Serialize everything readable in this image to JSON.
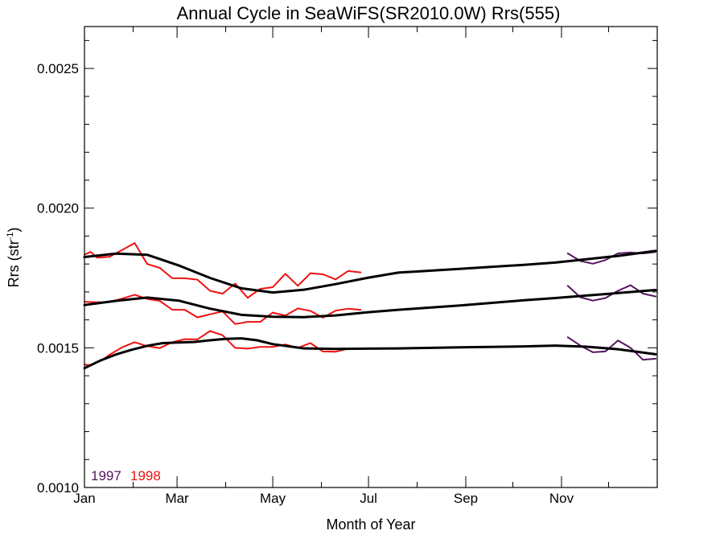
{
  "chart_data": {
    "type": "line",
    "title": "Annual Cycle in SeaWiFS(SR2010.0W) Rrs(555)",
    "xlabel": "Month of Year",
    "ylabel": "Rrs (str",
    "ylabel_superscript": "-1",
    "ylabel_suffix": ")",
    "x_tick_labels": [
      "Jan",
      "Mar",
      "May",
      "Jul",
      "Sep",
      "Nov"
    ],
    "x_range_days": [
      0,
      365
    ],
    "ylim": [
      0.001,
      0.00265
    ],
    "y_tick_labels": [
      "0.0010",
      "0.0015",
      "0.0020",
      "0.0025"
    ],
    "y_major_ticks": [
      0.001,
      0.0015,
      0.002,
      0.0025
    ],
    "grid": false,
    "legend": [
      {
        "label": "1997",
        "color": "#55155f"
      },
      {
        "label": "1998",
        "color": "#ee1111"
      }
    ],
    "series": [
      {
        "name": "1997",
        "color": "#55155f",
        "group": "upper",
        "x": [
          308,
          316,
          324,
          332,
          340,
          348,
          356,
          364
        ],
        "y": [
          0.001838,
          0.001811,
          0.001801,
          0.001814,
          0.001838,
          0.001841,
          0.001838,
          0.001843
        ]
      },
      {
        "name": "1997",
        "color": "#55155f",
        "group": "middle",
        "x": [
          308,
          316,
          324,
          332,
          340,
          348,
          356,
          364
        ],
        "y": [
          0.001722,
          0.001681,
          0.001669,
          0.001678,
          0.001704,
          0.001724,
          0.001694,
          0.001684
        ]
      },
      {
        "name": "1997",
        "color": "#55155f",
        "group": "lower",
        "x": [
          308,
          316,
          324,
          332,
          340,
          348,
          356,
          364
        ],
        "y": [
          0.001538,
          0.001508,
          0.001484,
          0.001487,
          0.001526,
          0.0015,
          0.001457,
          0.001461
        ]
      },
      {
        "name": "1998",
        "color": "#ee1111",
        "group": "upper",
        "x": [
          0,
          4,
          8,
          12,
          16,
          24,
          32,
          40,
          48,
          56,
          64,
          72,
          80,
          88,
          96,
          104,
          112,
          120,
          128,
          136,
          144,
          152,
          160,
          168,
          176
        ],
        "y": [
          0.001834,
          0.001843,
          0.001823,
          0.001824,
          0.001826,
          0.00185,
          0.001875,
          0.0018,
          0.001786,
          0.001749,
          0.001749,
          0.001744,
          0.001704,
          0.001694,
          0.00173,
          0.001679,
          0.001711,
          0.001717,
          0.001765,
          0.001722,
          0.001767,
          0.001763,
          0.001745,
          0.001775,
          0.00177
        ]
      },
      {
        "name": "1998",
        "color": "#ee1111",
        "group": "middle",
        "x": [
          0,
          8,
          16,
          24,
          32,
          40,
          48,
          56,
          64,
          72,
          80,
          88,
          96,
          104,
          112,
          120,
          128,
          136,
          144,
          152,
          160,
          168,
          176
        ],
        "y": [
          0.001665,
          0.001663,
          0.001664,
          0.001676,
          0.00169,
          0.001675,
          0.001668,
          0.001636,
          0.001636,
          0.001609,
          0.00162,
          0.00163,
          0.001585,
          0.001593,
          0.001593,
          0.001626,
          0.001615,
          0.001641,
          0.001632,
          0.001608,
          0.001633,
          0.00164,
          0.001636
        ]
      },
      {
        "name": "1998",
        "color": "#ee1111",
        "group": "lower",
        "x": [
          0,
          4,
          8,
          12,
          16,
          24,
          32,
          40,
          48,
          56,
          64,
          72,
          80,
          88,
          96,
          104,
          112,
          120,
          128,
          136,
          144,
          152,
          160,
          168,
          176
        ],
        "y": [
          0.00144,
          0.001438,
          0.001448,
          0.001459,
          0.001475,
          0.001502,
          0.00152,
          0.001506,
          0.001499,
          0.00152,
          0.001531,
          0.00153,
          0.00156,
          0.001545,
          0.0015,
          0.001497,
          0.001503,
          0.001503,
          0.001512,
          0.0015,
          0.001517,
          0.001487,
          0.001486,
          0.001497,
          0.001497
        ]
      },
      {
        "name": "",
        "color": "#000000",
        "group": "upper-smooth",
        "x": [
          0,
          20,
          40,
          60,
          80,
          100,
          120,
          140,
          160,
          180,
          200,
          240,
          280,
          300,
          320,
          340,
          364
        ],
        "y": [
          0.001825,
          0.001837,
          0.001833,
          0.001795,
          0.00175,
          0.001713,
          0.001698,
          0.001708,
          0.001728,
          0.00175,
          0.001769,
          0.001783,
          0.001797,
          0.001805,
          0.001817,
          0.001829,
          0.001847
        ]
      },
      {
        "name": "",
        "color": "#000000",
        "group": "middle-smooth",
        "x": [
          0,
          20,
          40,
          60,
          80,
          100,
          120,
          140,
          160,
          180,
          200,
          240,
          280,
          300,
          320,
          340,
          364
        ],
        "y": [
          0.001653,
          0.001668,
          0.00168,
          0.001669,
          0.00164,
          0.001618,
          0.001611,
          0.00161,
          0.001616,
          0.001627,
          0.001636,
          0.001652,
          0.00167,
          0.001678,
          0.001687,
          0.001696,
          0.001707
        ]
      },
      {
        "name": "",
        "color": "#000000",
        "group": "lower-smooth",
        "x": [
          0,
          10,
          20,
          30,
          40,
          50,
          60,
          70,
          80,
          90,
          100,
          110,
          120,
          140,
          160,
          180,
          200,
          240,
          280,
          300,
          320,
          340,
          364
        ],
        "y": [
          0.001427,
          0.001454,
          0.001476,
          0.001493,
          0.001507,
          0.001517,
          0.001519,
          0.001521,
          0.001527,
          0.001532,
          0.001534,
          0.001527,
          0.001513,
          0.001498,
          0.001496,
          0.001497,
          0.001498,
          0.001502,
          0.001505,
          0.001508,
          0.001504,
          0.001495,
          0.001477
        ]
      }
    ]
  }
}
